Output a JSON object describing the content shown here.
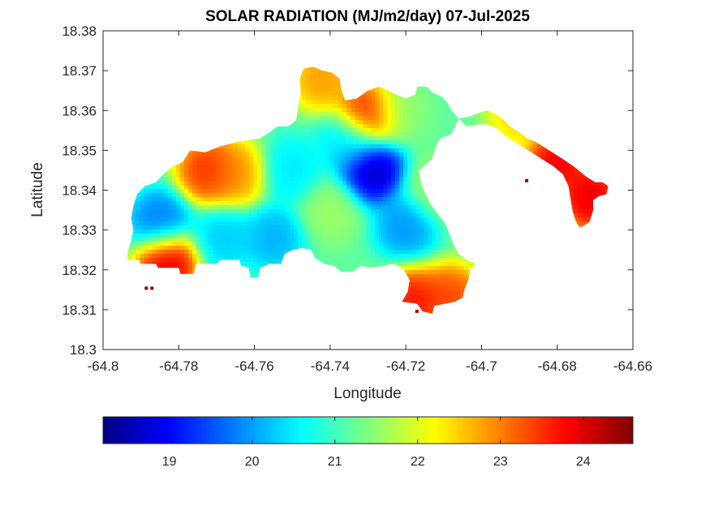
{
  "chart_data": {
    "type": "heatmap",
    "title": "SOLAR RADIATION (MJ/m2/day) 07-Jul-2025",
    "xlabel": "Longitude",
    "ylabel": "Latitude",
    "xlim": [
      -64.8,
      -64.66
    ],
    "ylim": [
      18.3,
      18.38
    ],
    "x_ticks": [
      "-64.8",
      "-64.78",
      "-64.76",
      "-64.74",
      "-64.72",
      "-64.7",
      "-64.68",
      "-64.66"
    ],
    "y_ticks": [
      "18.3",
      "18.31",
      "18.32",
      "18.33",
      "18.34",
      "18.35",
      "18.36",
      "18.37",
      "18.38"
    ],
    "colormap": "jet",
    "color_range": [
      18.2,
      24.6
    ],
    "colorbar_ticks": [
      "19",
      "20",
      "21",
      "22",
      "23",
      "24"
    ],
    "colorbar_location": "bottom",
    "grid": false,
    "hotspots": [
      {
        "lon": -64.729,
        "lat": 18.345,
        "value": 18.3
      },
      {
        "lon": -64.72,
        "lat": 18.331,
        "value": 19.8
      },
      {
        "lon": -64.785,
        "lat": 18.332,
        "value": 19.6
      },
      {
        "lon": -64.768,
        "lat": 18.328,
        "value": 20.2
      },
      {
        "lon": -64.755,
        "lat": 18.328,
        "value": 20.0
      },
      {
        "lon": -64.75,
        "lat": 18.345,
        "value": 20.4
      },
      {
        "lon": -64.735,
        "lat": 18.352,
        "value": 20.3
      },
      {
        "lon": -64.772,
        "lat": 18.345,
        "value": 23.8
      },
      {
        "lon": -64.765,
        "lat": 18.344,
        "value": 23.0
      },
      {
        "lon": -64.783,
        "lat": 18.322,
        "value": 24.3
      },
      {
        "lon": -64.73,
        "lat": 18.359,
        "value": 24.0
      },
      {
        "lon": -64.742,
        "lat": 18.368,
        "value": 23.0
      },
      {
        "lon": -64.718,
        "lat": 18.312,
        "value": 24.0
      },
      {
        "lon": -64.708,
        "lat": 18.313,
        "value": 23.6
      },
      {
        "lon": -64.69,
        "lat": 18.359,
        "value": 22.6
      },
      {
        "lon": -64.68,
        "lat": 18.347,
        "value": 24.2
      },
      {
        "lon": -64.671,
        "lat": 18.338,
        "value": 24.3
      },
      {
        "lon": -64.722,
        "lat": 18.36,
        "value": 21.5
      },
      {
        "lon": -64.74,
        "lat": 18.335,
        "value": 21.6
      },
      {
        "lon": -64.712,
        "lat": 18.34,
        "value": 21.6
      }
    ]
  }
}
